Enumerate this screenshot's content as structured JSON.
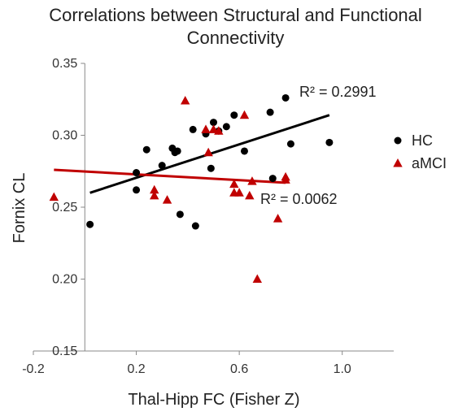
{
  "chart_data": {
    "type": "scatter",
    "title_line1": "Correlations between Structural and Functional",
    "title_line2": "Connectivity",
    "xlabel": "Thal-Hipp FC (Fisher Z)",
    "ylabel": "Fornix CL",
    "xlim": [
      -0.2,
      1.2
    ],
    "ylim": [
      0.15,
      0.35
    ],
    "x_ticks": [
      -0.2,
      0.2,
      0.6,
      1.0
    ],
    "x_tick_labels": [
      "-0.2",
      "0.2",
      "0.6",
      "1.0"
    ],
    "y_ticks": [
      0.15,
      0.2,
      0.25,
      0.3,
      0.35
    ],
    "y_tick_labels": [
      "0.15",
      "0.20",
      "0.25",
      "0.30",
      "0.35"
    ],
    "legend_position": "right",
    "series": [
      {
        "name": "HC",
        "color": "#000000",
        "marker": "circle",
        "points": [
          [
            0.02,
            0.238
          ],
          [
            0.2,
            0.274
          ],
          [
            0.2,
            0.262
          ],
          [
            0.24,
            0.29
          ],
          [
            0.3,
            0.279
          ],
          [
            0.34,
            0.291
          ],
          [
            0.35,
            0.288
          ],
          [
            0.36,
            0.289
          ],
          [
            0.37,
            0.245
          ],
          [
            0.42,
            0.304
          ],
          [
            0.43,
            0.237
          ],
          [
            0.47,
            0.301
          ],
          [
            0.49,
            0.277
          ],
          [
            0.5,
            0.309
          ],
          [
            0.52,
            0.303
          ],
          [
            0.55,
            0.306
          ],
          [
            0.58,
            0.314
          ],
          [
            0.62,
            0.289
          ],
          [
            0.72,
            0.316
          ],
          [
            0.73,
            0.27
          ],
          [
            0.78,
            0.326
          ],
          [
            0.8,
            0.294
          ],
          [
            0.95,
            0.295
          ]
        ],
        "trendline": {
          "x": [
            0.02,
            0.95
          ],
          "y": [
            0.26,
            0.314
          ]
        },
        "r2_label": "R² = 0.2991"
      },
      {
        "name": "aMCI",
        "color": "#c00000",
        "marker": "triangle",
        "points": [
          [
            -0.12,
            0.257
          ],
          [
            0.27,
            0.262
          ],
          [
            0.27,
            0.258
          ],
          [
            0.32,
            0.255
          ],
          [
            0.39,
            0.324
          ],
          [
            0.47,
            0.304
          ],
          [
            0.48,
            0.288
          ],
          [
            0.5,
            0.304
          ],
          [
            0.52,
            0.303
          ],
          [
            0.58,
            0.266
          ],
          [
            0.58,
            0.26
          ],
          [
            0.6,
            0.26
          ],
          [
            0.62,
            0.314
          ],
          [
            0.64,
            0.258
          ],
          [
            0.65,
            0.268
          ],
          [
            0.67,
            0.2
          ],
          [
            0.75,
            0.242
          ],
          [
            0.78,
            0.271
          ],
          [
            0.78,
            0.269
          ]
        ],
        "trendline": {
          "x": [
            -0.12,
            0.78
          ],
          "y": [
            0.276,
            0.267
          ]
        },
        "r2_label": "R² = 0.0062"
      }
    ]
  }
}
